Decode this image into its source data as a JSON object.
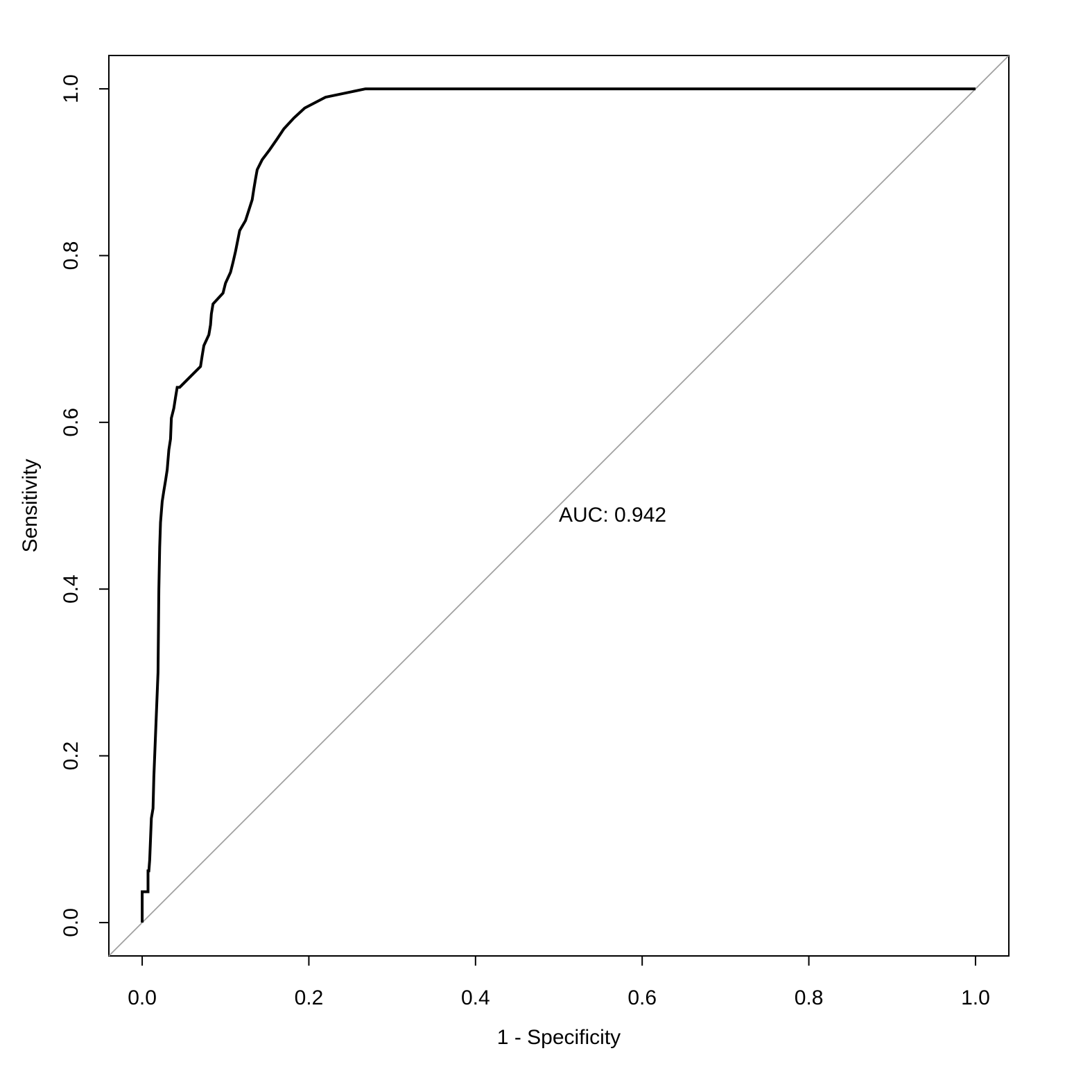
{
  "chart_data": {
    "type": "line",
    "title": "",
    "xlabel": "1 - Specificity",
    "ylabel": "Sensitivity",
    "xlim": [
      -0.04,
      1.04
    ],
    "ylim": [
      -0.04,
      1.04
    ],
    "x_ticks": [
      "0.0",
      "0.2",
      "0.4",
      "0.6",
      "0.8",
      "1.0"
    ],
    "y_ticks": [
      "0.0",
      "0.2",
      "0.4",
      "0.6",
      "0.8",
      "1.0"
    ],
    "grid": false,
    "legend": "none",
    "annotation": {
      "text": "AUC: 0.942",
      "x": 0.5,
      "y": 0.49
    },
    "series": [
      {
        "color": "#000000",
        "x": [
          0.0,
          0.0,
          0.007,
          0.007,
          0.008,
          0.009,
          0.009,
          0.01,
          0.01,
          0.011,
          0.011,
          0.013,
          0.013,
          0.014,
          0.014,
          0.016,
          0.016,
          0.017,
          0.017,
          0.018,
          0.018,
          0.019,
          0.019,
          0.02,
          0.02,
          0.021,
          0.021,
          0.022,
          0.022,
          0.024,
          0.024,
          0.026,
          0.026,
          0.028,
          0.028,
          0.03,
          0.03,
          0.032,
          0.032,
          0.034,
          0.034,
          0.035,
          0.035,
          0.038,
          0.038,
          0.04,
          0.04,
          0.042,
          0.042,
          0.045,
          0.045,
          0.058,
          0.058,
          0.07,
          0.07,
          0.072,
          0.072,
          0.074,
          0.074,
          0.08,
          0.08,
          0.082,
          0.082,
          0.083,
          0.083,
          0.085,
          0.085,
          0.097,
          0.097,
          0.1,
          0.1,
          0.106,
          0.106,
          0.109,
          0.109,
          0.112,
          0.112,
          0.117,
          0.117,
          0.124,
          0.124,
          0.132,
          0.132,
          0.134,
          0.134,
          0.136,
          0.136,
          0.138,
          0.138,
          0.144,
          0.144,
          0.153,
          0.153,
          0.162,
          0.162,
          0.17,
          0.17,
          0.182,
          0.182,
          0.195,
          0.195,
          0.22,
          0.22,
          0.268,
          0.268,
          1.0
        ],
        "y": [
          0.0,
          0.037,
          0.037,
          0.062,
          0.062,
          0.075,
          0.075,
          0.1,
          0.1,
          0.125,
          0.125,
          0.137,
          0.137,
          0.175,
          0.175,
          0.225,
          0.225,
          0.25,
          0.25,
          0.275,
          0.275,
          0.3,
          0.3,
          0.4,
          0.4,
          0.45,
          0.45,
          0.48,
          0.48,
          0.505,
          0.505,
          0.518,
          0.518,
          0.53,
          0.53,
          0.543,
          0.543,
          0.567,
          0.567,
          0.58,
          0.58,
          0.605,
          0.605,
          0.617,
          0.617,
          0.63,
          0.63,
          0.642,
          0.642,
          0.642,
          0.642,
          0.655,
          0.655,
          0.667,
          0.667,
          0.68,
          0.68,
          0.692,
          0.692,
          0.705,
          0.705,
          0.717,
          0.717,
          0.73,
          0.73,
          0.742,
          0.742,
          0.755,
          0.755,
          0.767,
          0.767,
          0.78,
          0.78,
          0.792,
          0.792,
          0.805,
          0.805,
          0.83,
          0.83,
          0.842,
          0.842,
          0.867,
          0.867,
          0.88,
          0.88,
          0.892,
          0.892,
          0.903,
          0.903,
          0.915,
          0.915,
          0.927,
          0.927,
          0.94,
          0.94,
          0.952,
          0.952,
          0.965,
          0.965,
          0.977,
          0.977,
          0.99,
          0.99,
          1.0,
          1.0,
          1.0
        ]
      },
      {
        "color": "#a0a0a0",
        "x": [
          -0.04,
          1.04
        ],
        "y": [
          -0.04,
          1.04
        ]
      }
    ]
  }
}
